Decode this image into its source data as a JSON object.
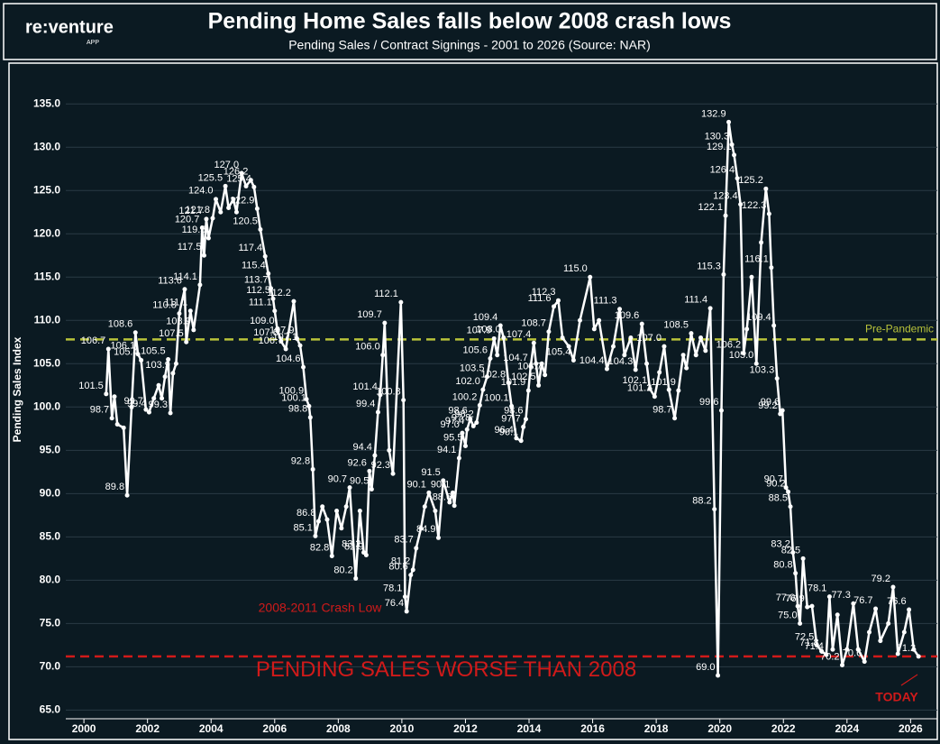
{
  "header": {
    "logo": "re:venture",
    "logo_sub": "APP"
  },
  "chart_data": {
    "type": "line",
    "title": "Pending Home Sales falls below 2008 crash lows",
    "subtitle": "Pending Sales / Contract Signings - 2001 to 2026 (Source: NAR)",
    "ylabel": "Pending Sales Index",
    "xlim": [
      1999.43,
      2026.84
    ],
    "ylim": [
      64,
      139.5
    ],
    "xticks": [
      2000,
      2002,
      2004,
      2006,
      2008,
      2010,
      2012,
      2014,
      2016,
      2018,
      2020,
      2022,
      2024,
      2026
    ],
    "yticks": [
      {
        "value": 65,
        "label": "65.0"
      },
      {
        "value": 70,
        "label": "70.0"
      },
      {
        "value": 75,
        "label": "75.0"
      },
      {
        "value": 80,
        "label": "80.0"
      },
      {
        "value": 85,
        "label": "85.0"
      },
      {
        "value": 90,
        "label": "90.0"
      },
      {
        "value": 95,
        "label": "95.0"
      },
      {
        "value": 100,
        "label": "100.0"
      },
      {
        "value": 105,
        "label": "105.0"
      },
      {
        "value": 110,
        "label": "110.0"
      },
      {
        "value": 115,
        "label": "115.0"
      },
      {
        "value": 120,
        "label": "120.0"
      },
      {
        "value": 125,
        "label": "125.0"
      },
      {
        "value": 130,
        "label": "130.0"
      },
      {
        "value": 135,
        "label": "135.0"
      }
    ],
    "grid": true,
    "color": "#ffffff",
    "x": [
      2000.7,
      2000.77,
      2000.88,
      2000.96,
      2001.05,
      2001.25,
      2001.36,
      2001.5,
      2001.62,
      2001.7,
      2001.8,
      2001.95,
      2002.05,
      2002.2,
      2002.35,
      2002.45,
      2002.55,
      2002.65,
      2002.72,
      2002.8,
      2002.9,
      2003.0,
      2003.17,
      2003.22,
      2003.35,
      2003.45,
      2003.65,
      2003.72,
      2003.78,
      2003.85,
      2003.92,
      2004.05,
      2004.15,
      2004.3,
      2004.45,
      2004.55,
      2004.7,
      2004.8,
      2004.96,
      2005.1,
      2005.25,
      2005.35,
      2005.45,
      2005.55,
      2005.7,
      2005.8,
      2005.88,
      2005.95,
      2006.0,
      2006.08,
      2006.2,
      2006.35,
      2006.6,
      2006.7,
      2006.8,
      2006.9,
      2007.0,
      2007.08,
      2007.12,
      2007.2,
      2007.28,
      2007.38,
      2007.5,
      2007.65,
      2007.8,
      2007.95,
      2008.1,
      2008.25,
      2008.36,
      2008.55,
      2008.68,
      2008.8,
      2008.88,
      2008.98,
      2009.05,
      2009.15,
      2009.25,
      2009.32,
      2009.4,
      2009.46,
      2009.6,
      2009.72,
      2009.97,
      2010.05,
      2010.1,
      2010.15,
      2010.28,
      2010.35,
      2010.45,
      2010.6,
      2010.72,
      2010.85,
      2011.05,
      2011.15,
      2011.3,
      2011.5,
      2011.6,
      2011.65,
      2011.8,
      2011.9,
      2012.0,
      2012.05,
      2012.15,
      2012.25,
      2012.35,
      2012.45,
      2012.55,
      2012.68,
      2012.78,
      2012.9,
      2013.0,
      2013.1,
      2013.2,
      2013.35,
      2013.45,
      2013.6,
      2013.75,
      2013.82,
      2013.9,
      2013.98,
      2014.05,
      2014.15,
      2014.22,
      2014.3,
      2014.4,
      2014.5,
      2014.62,
      2014.78,
      2014.92,
      2015.05,
      2015.25,
      2015.4,
      2015.6,
      2015.92,
      2016.05,
      2016.2,
      2016.45,
      2016.65,
      2016.85,
      2017.0,
      2017.2,
      2017.35,
      2017.55,
      2017.7,
      2017.8,
      2017.95,
      2018.1,
      2018.25,
      2018.4,
      2018.58,
      2018.7,
      2018.85,
      2018.95,
      2019.1,
      2019.25,
      2019.4,
      2019.55,
      2019.7,
      2019.83,
      2019.94,
      2020.05,
      2020.12,
      2020.18,
      2020.28,
      2020.38,
      2020.45,
      2020.55,
      2020.65,
      2020.75,
      2020.85,
      2021.0,
      2021.15,
      2021.3,
      2021.45,
      2021.55,
      2021.62,
      2021.7,
      2021.8,
      2021.9,
      2021.97,
      2022.08,
      2022.15,
      2022.22,
      2022.3,
      2022.38,
      2022.45,
      2022.52,
      2022.62,
      2022.75,
      2022.9,
      2023.05,
      2023.2,
      2023.35,
      2023.45,
      2023.55,
      2023.7,
      2023.85,
      2024.0,
      2024.2,
      2024.35,
      2024.55,
      2024.7,
      2024.9,
      2025.05,
      2025.3,
      2025.45,
      2025.6,
      2025.8,
      2025.95,
      2026.1,
      2026.25
    ],
    "values": [
      101.5,
      106.7,
      98.7,
      101.2,
      98.0,
      97.6,
      89.8,
      100.0,
      108.6,
      106.1,
      105.4,
      99.7,
      99.4,
      101.0,
      102.5,
      101.0,
      103.5,
      105.5,
      99.3,
      103.9,
      105.0,
      110.8,
      113.6,
      107.5,
      111.1,
      108.9,
      114.1,
      120.7,
      117.5,
      121.7,
      119.5,
      121.8,
      124.0,
      122.5,
      125.5,
      123.0,
      124.0,
      122.5,
      127.0,
      125.5,
      126.2,
      125.4,
      122.9,
      120.5,
      117.4,
      115.4,
      113.7,
      112.5,
      111.1,
      109.0,
      107.6,
      106.7,
      112.2,
      107.9,
      107.1,
      104.6,
      100.9,
      100.1,
      98.8,
      92.8,
      85.1,
      86.8,
      88.5,
      87.0,
      82.8,
      88.0,
      86.0,
      88.5,
      90.7,
      80.2,
      88.0,
      83.2,
      82.9,
      92.6,
      90.5,
      94.4,
      99.4,
      101.4,
      106.0,
      109.7,
      95.0,
      92.3,
      112.1,
      100.8,
      78.1,
      76.4,
      80.6,
      81.2,
      83.7,
      86.0,
      88.5,
      90.1,
      88.0,
      84.9,
      91.5,
      89.0,
      90.1,
      88.6,
      94.1,
      97.0,
      95.5,
      97.4,
      98.6,
      97.8,
      98.2,
      100.2,
      102.0,
      103.5,
      105.6,
      107.9,
      106.0,
      109.4,
      108.0,
      102.8,
      100.1,
      96.4,
      96.1,
      97.7,
      98.6,
      101.9,
      104.7,
      107.4,
      105.0,
      102.5,
      105.0,
      103.7,
      108.7,
      111.6,
      112.3,
      108.0,
      107.0,
      105.4,
      110.0,
      115.0,
      109.0,
      110.0,
      104.4,
      107.0,
      111.3,
      106.0,
      108.0,
      104.3,
      109.6,
      105.0,
      102.1,
      101.2,
      104.0,
      107.0,
      102.0,
      98.7,
      101.9,
      106.0,
      104.5,
      108.5,
      106.0,
      108.0,
      106.5,
      111.4,
      88.2,
      69.0,
      99.6,
      115.3,
      122.1,
      132.9,
      130.3,
      129.1,
      126.4,
      123.4,
      106.2,
      109.0,
      115.0,
      105.0,
      119.0,
      125.2,
      122.3,
      116.1,
      109.4,
      103.3,
      99.2,
      99.6,
      90.7,
      90.2,
      88.5,
      83.2,
      80.8,
      77.0,
      75.0,
      82.5,
      76.9,
      77.0,
      72.5,
      71.8,
      71.4,
      78.1,
      72.0,
      76.0,
      70.2,
      72.0,
      77.3,
      72.0,
      70.6,
      74.0,
      76.7,
      73.0,
      75.0,
      79.2,
      71.5,
      74.0,
      76.6,
      72.0,
      71.2
    ],
    "value_labels": [
      "101.5",
      "106.7",
      "98.7",
      null,
      null,
      null,
      "89.8",
      null,
      "108.6",
      "106.1",
      "105.4",
      "99.7",
      "99.4",
      null,
      null,
      null,
      null,
      "105.5",
      "99.3",
      "103.9",
      null,
      "110.8",
      "113.6",
      "107.5",
      "111.1",
      "108.9",
      "114.1",
      "120.7",
      "117.5",
      "121.7",
      "119.5",
      "121.8",
      "124.0",
      null,
      "125.5",
      null,
      null,
      null,
      "127.0",
      null,
      "126.2",
      "125.4",
      "122.9",
      "120.5",
      "117.4",
      "115.4",
      "113.7",
      "112.5",
      "111.1",
      "109.0",
      "107.6",
      "106.7",
      "112.2",
      "107.9",
      "107.1",
      "104.6",
      "100.9",
      "100.1",
      "98.8",
      "92.8",
      "85.1",
      "86.8",
      null,
      null,
      "82.8",
      null,
      null,
      null,
      "90.7",
      "80.2",
      null,
      "83.2",
      "82.9",
      "92.6",
      "90.5",
      "94.4",
      "99.4",
      "101.4",
      "106.0",
      "109.7",
      null,
      "92.3",
      "112.1",
      "100.8",
      "78.1",
      "76.4",
      "80.6",
      "81.2",
      "83.7",
      null,
      null,
      "90.1",
      null,
      "84.9",
      "91.5",
      null,
      "90.1",
      "88.6",
      "94.1",
      "97.0",
      "95.5",
      "97.4",
      "98.6",
      "97.8",
      "98.2",
      "100.2",
      "102.0",
      "103.5",
      "105.6",
      "107.9",
      null,
      "109.4",
      "108.0",
      "102.8",
      "100.1",
      "96.4",
      "96.1",
      "97.7",
      "98.6",
      "101.9",
      "104.7",
      "107.4",
      null,
      "102.5",
      null,
      "103.7",
      "108.7",
      "111.6",
      "112.3",
      null,
      null,
      "105.4",
      null,
      "115.0",
      null,
      null,
      "104.4",
      null,
      "111.3",
      null,
      null,
      "104.3",
      "109.6",
      null,
      "102.1",
      "101.2",
      null,
      "107.0",
      null,
      "98.7",
      "101.9",
      null,
      null,
      "108.5",
      null,
      null,
      null,
      "111.4",
      "88.2",
      "69.0",
      "99.6",
      "115.3",
      "122.1",
      "132.9",
      "130.3",
      "129.1",
      "126.4",
      "123.4",
      "106.2",
      null,
      null,
      "105.0",
      null,
      "125.2",
      "122.3",
      "116.1",
      "109.4",
      "103.3",
      "99.2",
      "99.6",
      "90.7",
      "90.2",
      "88.5",
      "83.2",
      "80.8",
      "77.0",
      "75.0",
      "82.5",
      "76.9",
      null,
      "72.5",
      "71.8",
      "71.4",
      "78.1",
      null,
      null,
      "70.2",
      null,
      "77.3",
      null,
      "70.6",
      null,
      "76.7",
      null,
      null,
      "79.2",
      null,
      null,
      "76.6",
      null,
      "71.2"
    ],
    "reference_lines": [
      {
        "value": 107.8,
        "label": "Pre-Pandemic",
        "color": "#b8c23a"
      },
      {
        "value": 71.2,
        "label": "PENDING SALES WORSE THAN 2008",
        "color": "#d01a1a"
      }
    ],
    "annotations": [
      {
        "text": "2008-2011 Crash Low",
        "color": "#d01a1a"
      },
      {
        "text": "TODAY",
        "color": "#d01a1a"
      }
    ]
  }
}
